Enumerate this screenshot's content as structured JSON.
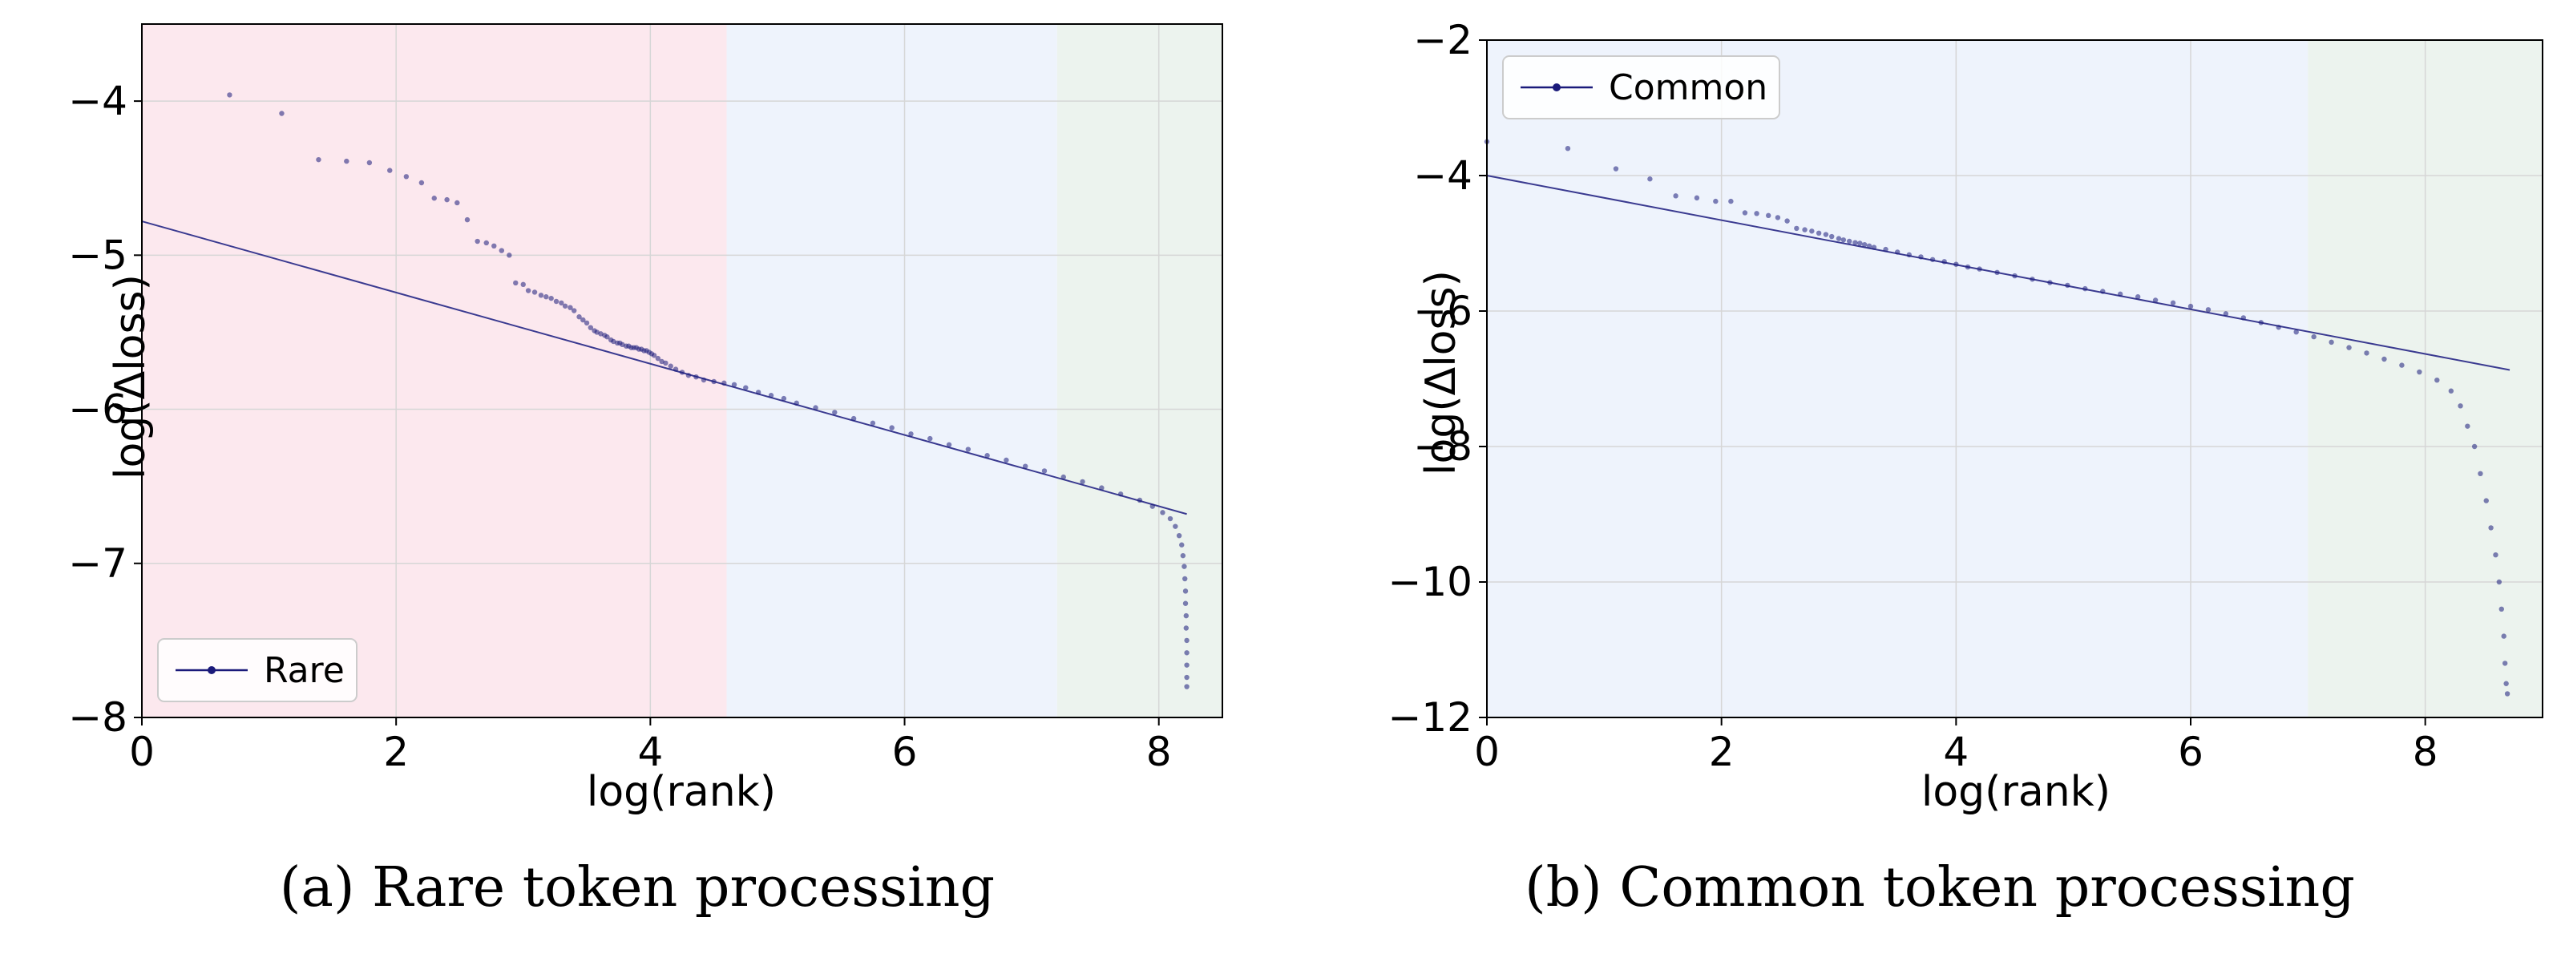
{
  "figure": {
    "captions": [
      "(a) Rare token processing",
      "(b) Common token processing"
    ]
  },
  "chart_data": [
    {
      "type": "scatter",
      "xlabel": "log(rank)",
      "ylabel": "log(Δloss)",
      "xlim": [
        0,
        8.5
      ],
      "ylim": [
        -8,
        -3.5
      ],
      "xticks": [
        0,
        2,
        4,
        6,
        8
      ],
      "yticks": [
        -8,
        -7,
        -6,
        -5,
        -4
      ],
      "grid": true,
      "legend": {
        "label": "Rare",
        "placement": "lower-left"
      },
      "regions": [
        {
          "x0": 0,
          "x1": 4.6,
          "color": "#fce8ee"
        },
        {
          "x0": 4.6,
          "x1": 7.2,
          "color": "#eef3fc"
        },
        {
          "x0": 7.2,
          "x1": 8.5,
          "color": "#ecf3ee"
        }
      ],
      "series": [
        {
          "name": "Rare",
          "color": "#1a1a7a",
          "points": [
            [
              0.69,
              -3.96
            ],
            [
              1.1,
              -4.08
            ],
            [
              1.39,
              -4.38
            ],
            [
              1.61,
              -4.39
            ],
            [
              1.79,
              -4.4
            ],
            [
              1.95,
              -4.45
            ],
            [
              2.08,
              -4.49
            ],
            [
              2.2,
              -4.53
            ],
            [
              2.3,
              -4.63
            ],
            [
              2.4,
              -4.64
            ],
            [
              2.48,
              -4.66
            ],
            [
              2.56,
              -4.77
            ],
            [
              2.64,
              -4.91
            ],
            [
              2.71,
              -4.92
            ],
            [
              2.77,
              -4.94
            ],
            [
              2.83,
              -4.97
            ],
            [
              2.89,
              -5.0
            ],
            [
              2.94,
              -5.18
            ],
            [
              3.0,
              -5.19
            ],
            [
              3.04,
              -5.23
            ],
            [
              3.09,
              -5.24
            ],
            [
              3.14,
              -5.26
            ],
            [
              3.18,
              -5.27
            ],
            [
              3.22,
              -5.28
            ],
            [
              3.26,
              -5.3
            ],
            [
              3.3,
              -5.31
            ],
            [
              3.33,
              -5.33
            ],
            [
              3.37,
              -5.34
            ],
            [
              3.4,
              -5.36
            ],
            [
              3.44,
              -5.4
            ],
            [
              3.47,
              -5.42
            ],
            [
              3.5,
              -5.44
            ],
            [
              3.53,
              -5.47
            ],
            [
              3.56,
              -5.49
            ],
            [
              3.58,
              -5.5
            ],
            [
              3.61,
              -5.51
            ],
            [
              3.64,
              -5.52
            ],
            [
              3.66,
              -5.53
            ],
            [
              3.69,
              -5.55
            ],
            [
              3.71,
              -5.56
            ],
            [
              3.74,
              -5.57
            ],
            [
              3.76,
              -5.57
            ],
            [
              3.78,
              -5.58
            ],
            [
              3.81,
              -5.59
            ],
            [
              3.83,
              -5.59
            ],
            [
              3.85,
              -5.6
            ],
            [
              3.87,
              -5.6
            ],
            [
              3.89,
              -5.6
            ],
            [
              3.91,
              -5.61
            ],
            [
              3.93,
              -5.61
            ],
            [
              3.95,
              -5.62
            ],
            [
              3.97,
              -5.62
            ],
            [
              3.99,
              -5.63
            ],
            [
              4.01,
              -5.64
            ],
            [
              4.03,
              -5.65
            ],
            [
              4.06,
              -5.67
            ],
            [
              4.09,
              -5.69
            ],
            [
              4.12,
              -5.7
            ],
            [
              4.16,
              -5.72
            ],
            [
              4.2,
              -5.74
            ],
            [
              4.25,
              -5.76
            ],
            [
              4.3,
              -5.78
            ],
            [
              4.36,
              -5.79
            ],
            [
              4.42,
              -5.81
            ],
            [
              4.5,
              -5.82
            ],
            [
              4.58,
              -5.83
            ],
            [
              4.66,
              -5.84
            ],
            [
              4.75,
              -5.86
            ],
            [
              4.85,
              -5.89
            ],
            [
              4.95,
              -5.91
            ],
            [
              5.05,
              -5.93
            ],
            [
              5.15,
              -5.96
            ],
            [
              5.3,
              -5.99
            ],
            [
              5.45,
              -6.02
            ],
            [
              5.6,
              -6.06
            ],
            [
              5.75,
              -6.09
            ],
            [
              5.9,
              -6.12
            ],
            [
              6.05,
              -6.16
            ],
            [
              6.2,
              -6.19
            ],
            [
              6.35,
              -6.23
            ],
            [
              6.5,
              -6.26
            ],
            [
              6.65,
              -6.3
            ],
            [
              6.8,
              -6.33
            ],
            [
              6.95,
              -6.37
            ],
            [
              7.1,
              -6.4
            ],
            [
              7.25,
              -6.44
            ],
            [
              7.4,
              -6.47
            ],
            [
              7.55,
              -6.51
            ],
            [
              7.7,
              -6.55
            ],
            [
              7.85,
              -6.59
            ],
            [
              7.95,
              -6.63
            ],
            [
              8.03,
              -6.67
            ],
            [
              8.09,
              -6.71
            ],
            [
              8.13,
              -6.76
            ],
            [
              8.16,
              -6.82
            ],
            [
              8.18,
              -6.88
            ],
            [
              8.19,
              -6.95
            ],
            [
              8.2,
              -7.02
            ],
            [
              8.205,
              -7.1
            ],
            [
              8.21,
              -7.18
            ],
            [
              8.21,
              -7.26
            ],
            [
              8.215,
              -7.34
            ],
            [
              8.215,
              -7.42
            ],
            [
              8.22,
              -7.5
            ],
            [
              8.22,
              -7.58
            ],
            [
              8.22,
              -7.66
            ],
            [
              8.22,
              -7.74
            ],
            [
              8.22,
              -7.8
            ]
          ]
        }
      ],
      "fit_line": {
        "x0": 0,
        "y0": -4.78,
        "x1": 8.22,
        "y1": -6.68,
        "color": "#3a3a90"
      }
    },
    {
      "type": "scatter",
      "xlabel": "log(rank)",
      "ylabel": "log(Δloss)",
      "xlim": [
        0,
        9
      ],
      "ylim": [
        -12,
        -2
      ],
      "xticks": [
        0,
        2,
        4,
        6,
        8
      ],
      "yticks": [
        -12,
        -10,
        -8,
        -6,
        -4,
        -2
      ],
      "grid": true,
      "legend": {
        "label": "Common",
        "placement": "top-left"
      },
      "regions": [
        {
          "x0": 0,
          "x1": 7.0,
          "color": "#eef3fc"
        },
        {
          "x0": 7.0,
          "x1": 9,
          "color": "#ecf3ee"
        }
      ],
      "series": [
        {
          "name": "Common",
          "color": "#1a1a7a",
          "points": [
            [
              0.0,
              -3.5
            ],
            [
              0.69,
              -3.6
            ],
            [
              1.1,
              -3.9
            ],
            [
              1.39,
              -4.05
            ],
            [
              1.61,
              -4.3
            ],
            [
              1.79,
              -4.33
            ],
            [
              1.95,
              -4.38
            ],
            [
              2.08,
              -4.38
            ],
            [
              2.2,
              -4.55
            ],
            [
              2.3,
              -4.56
            ],
            [
              2.4,
              -4.59
            ],
            [
              2.48,
              -4.62
            ],
            [
              2.56,
              -4.67
            ],
            [
              2.64,
              -4.78
            ],
            [
              2.71,
              -4.8
            ],
            [
              2.77,
              -4.82
            ],
            [
              2.83,
              -4.85
            ],
            [
              2.89,
              -4.87
            ],
            [
              2.94,
              -4.9
            ],
            [
              3.0,
              -4.93
            ],
            [
              3.04,
              -4.95
            ],
            [
              3.09,
              -4.97
            ],
            [
              3.14,
              -4.99
            ],
            [
              3.18,
              -5.0
            ],
            [
              3.22,
              -5.02
            ],
            [
              3.26,
              -5.04
            ],
            [
              3.3,
              -5.06
            ],
            [
              3.4,
              -5.09
            ],
            [
              3.5,
              -5.13
            ],
            [
              3.6,
              -5.17
            ],
            [
              3.7,
              -5.2
            ],
            [
              3.8,
              -5.24
            ],
            [
              3.9,
              -5.27
            ],
            [
              4.0,
              -5.31
            ],
            [
              4.1,
              -5.35
            ],
            [
              4.2,
              -5.38
            ],
            [
              4.35,
              -5.43
            ],
            [
              4.5,
              -5.48
            ],
            [
              4.65,
              -5.53
            ],
            [
              4.8,
              -5.58
            ],
            [
              4.95,
              -5.62
            ],
            [
              5.1,
              -5.67
            ],
            [
              5.25,
              -5.71
            ],
            [
              5.4,
              -5.75
            ],
            [
              5.55,
              -5.79
            ],
            [
              5.7,
              -5.84
            ],
            [
              5.85,
              -5.88
            ],
            [
              6.0,
              -5.93
            ],
            [
              6.15,
              -5.98
            ],
            [
              6.3,
              -6.04
            ],
            [
              6.45,
              -6.1
            ],
            [
              6.6,
              -6.17
            ],
            [
              6.75,
              -6.24
            ],
            [
              6.9,
              -6.31
            ],
            [
              7.05,
              -6.38
            ],
            [
              7.2,
              -6.46
            ],
            [
              7.35,
              -6.54
            ],
            [
              7.5,
              -6.62
            ],
            [
              7.65,
              -6.71
            ],
            [
              7.8,
              -6.8
            ],
            [
              7.95,
              -6.9
            ],
            [
              8.1,
              -7.02
            ],
            [
              8.22,
              -7.18
            ],
            [
              8.3,
              -7.4
            ],
            [
              8.36,
              -7.7
            ],
            [
              8.42,
              -8.0
            ],
            [
              8.47,
              -8.4
            ],
            [
              8.52,
              -8.8
            ],
            [
              8.56,
              -9.2
            ],
            [
              8.6,
              -9.6
            ],
            [
              8.63,
              -10.0
            ],
            [
              8.65,
              -10.4
            ],
            [
              8.67,
              -10.8
            ],
            [
              8.68,
              -11.2
            ],
            [
              8.69,
              -11.5
            ],
            [
              8.7,
              -11.65
            ]
          ]
        }
      ],
      "fit_line": {
        "x0": 0,
        "y0": -4.0,
        "x1": 8.72,
        "y1": -6.87,
        "color": "#3a3a90"
      }
    }
  ]
}
